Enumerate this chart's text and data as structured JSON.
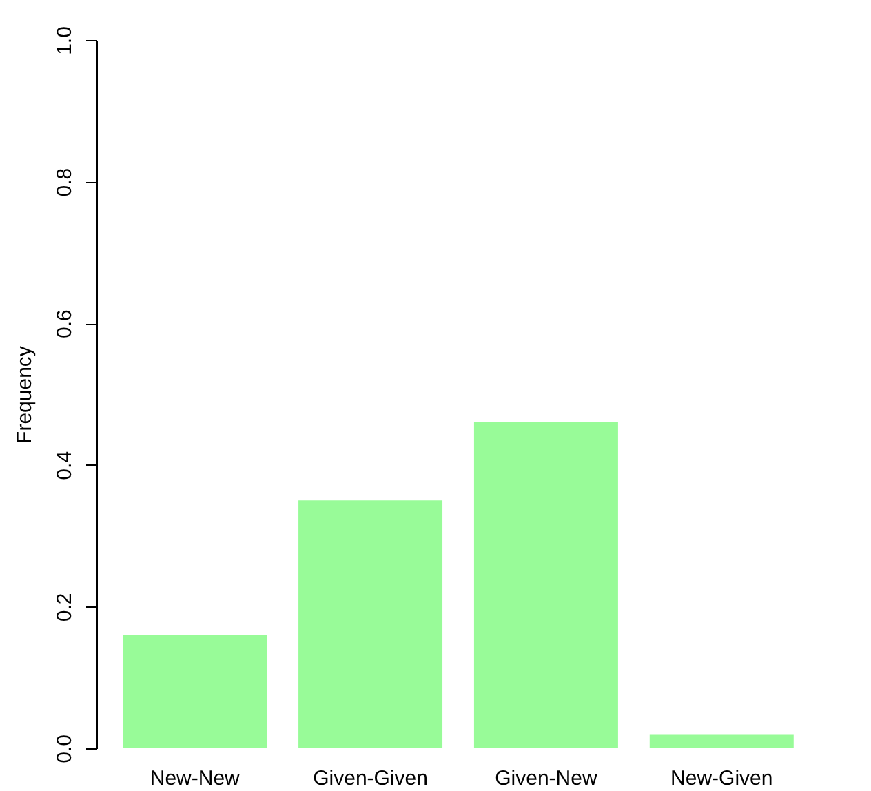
{
  "chart_data": {
    "type": "bar",
    "ylabel": "Frequency",
    "categories": [
      "New-New",
      "Given-Given",
      "Given-New",
      "New-Given"
    ],
    "values": [
      0.16,
      0.35,
      0.46,
      0.02
    ],
    "color": "#98fb98",
    "ylim": [
      0,
      1
    ],
    "yticks": [
      {
        "value": 0,
        "label": "0.0"
      },
      {
        "value": 0.2,
        "label": "0.2"
      },
      {
        "value": 0.4,
        "label": "0.4"
      },
      {
        "value": 0.6,
        "label": "0.6"
      },
      {
        "value": 0.8,
        "label": "0.8"
      },
      {
        "value": 1,
        "label": "1.0"
      }
    ],
    "grid": false
  }
}
